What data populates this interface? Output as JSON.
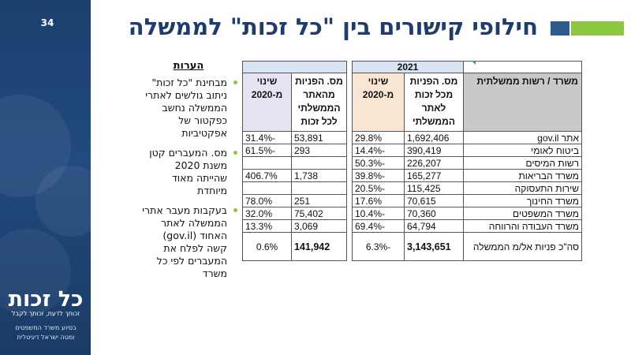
{
  "page_number": "34",
  "title": "חילופי קישורים בין \"כל זכות\" לממשלה",
  "sidebar": {
    "logo": "כל זכות",
    "tagline": "זכותך לדעת, זכותך לקבל",
    "sponsor_line1": "בסיוע משרד המשפטים",
    "sponsor_line2": "ומטה ישראל דיגיטלית"
  },
  "colors": {
    "navy": "#1f3c6b",
    "green": "#8dc63f",
    "blue_accent": "#2f5b8e"
  },
  "notes": {
    "heading": "הערות",
    "items": [
      "מבחינת \"כל זכות\" ניתוב גולשים לאתרי הממשלה נחשב כפקטור של אפקטיביות",
      "מס. המעברים קטן משנת 2020 שהייתה מאוד מיוחדת",
      "בעקבות מעבר אתרי הממשלה לאתר האחוד (gov.il) קשה לפלח את המעברים לפי כל משרד"
    ]
  },
  "table": {
    "year": "2021",
    "headers": {
      "ministry": "משרד / רשות ממשלתית",
      "visits_from_kolzchut": "מס. הפניות מכל זכות לאתר הממשלתי",
      "change_1": "שינוי מ-2020",
      "visits_from_gov": "מס. הפניות מהאתר הממשלתי לכל זכות",
      "change_2": "שינוי מ-2020"
    },
    "rows": [
      {
        "ministry": "אתר gov.il",
        "visits_out": "1,692,406",
        "change_out": "29.8%",
        "visits_in": "53,891",
        "change_in": "-31.4%"
      },
      {
        "ministry": "ביטוח לאומי",
        "visits_out": "390,419",
        "change_out": "-14.4%",
        "visits_in": "293",
        "change_in": "-61.5%"
      },
      {
        "ministry": "רשות המיסים",
        "visits_out": "226,207",
        "change_out": "-50.3%",
        "visits_in": "",
        "change_in": ""
      },
      {
        "ministry": "משרד הבריאות",
        "visits_out": "165,277",
        "change_out": "-39.8%",
        "visits_in": "1,738",
        "change_in": "406.7%"
      },
      {
        "ministry": "שירות התעסוקה",
        "visits_out": "115,425",
        "change_out": "-20.5%",
        "visits_in": "",
        "change_in": ""
      },
      {
        "ministry": "משרד החינוך",
        "visits_out": "70,615",
        "change_out": "17.6%",
        "visits_in": "251",
        "change_in": "78.0%"
      },
      {
        "ministry": "משרד המשפטים",
        "visits_out": "70,360",
        "change_out": "-10.4%",
        "visits_in": "75,402",
        "change_in": "32.0%"
      },
      {
        "ministry": "משרד העבודה והרווחה",
        "visits_out": "64,794",
        "change_out": "-69.4%",
        "visits_in": "3,069",
        "change_in": "13.3%"
      }
    ],
    "total": {
      "ministry": "סה\"כ פניות אל/מ הממשלה",
      "visits_out": "3,143,651",
      "change_out": "-6.3%",
      "visits_in": "141,942",
      "change_in": "0.6%"
    }
  }
}
